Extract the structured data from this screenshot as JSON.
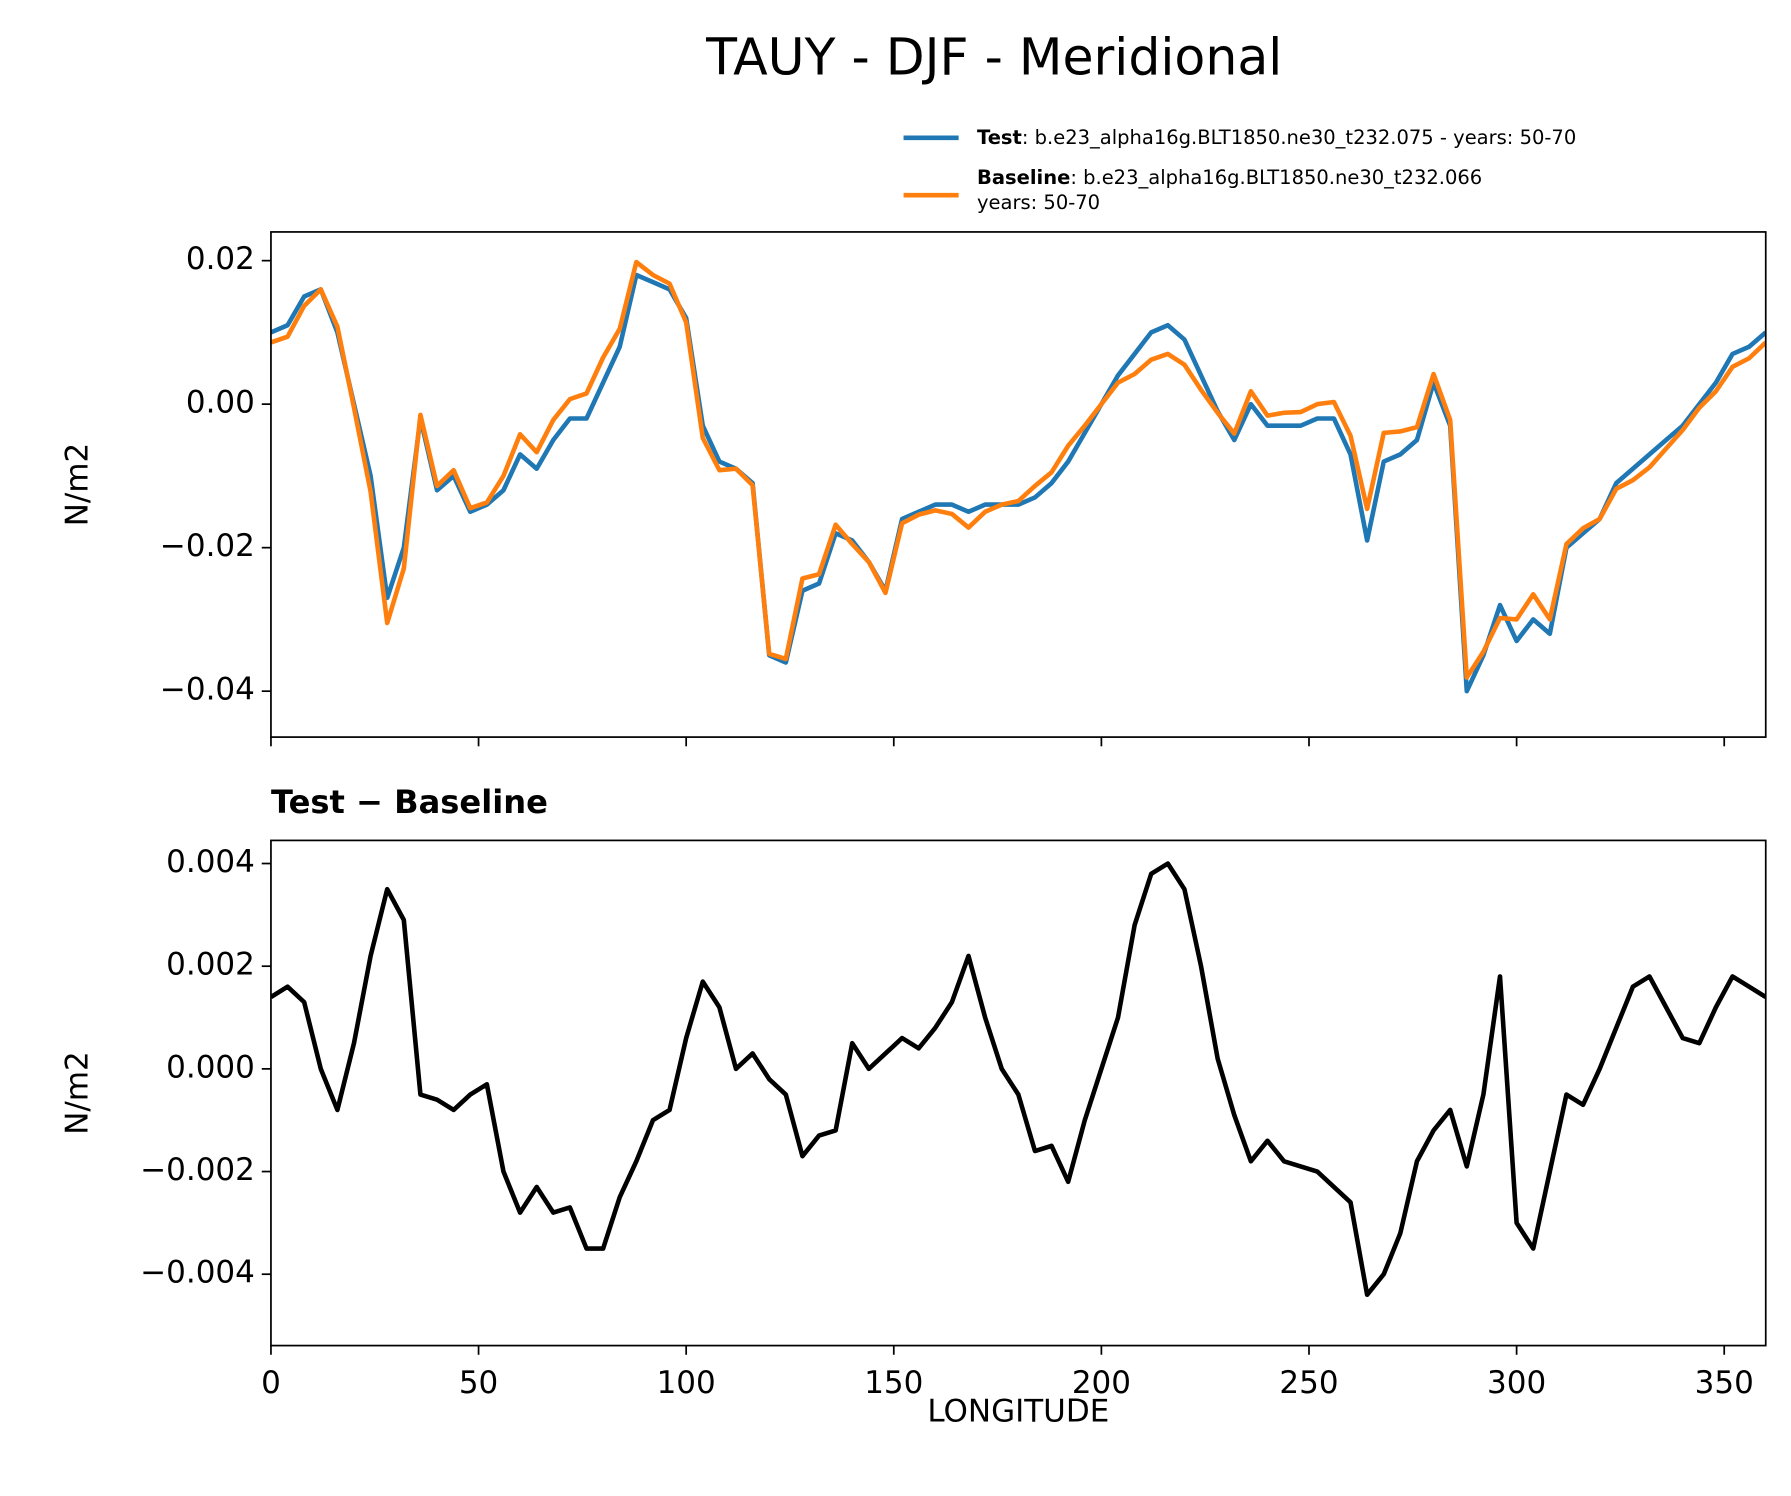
{
  "chart_data": [
    {
      "type": "line",
      "title": "TAUY - DJF - Meridional",
      "ylabel": "N/m2",
      "x": [
        0,
        4,
        8,
        12,
        16,
        20,
        24,
        28,
        32,
        36,
        40,
        44,
        48,
        52,
        56,
        60,
        64,
        68,
        72,
        76,
        80,
        84,
        88,
        92,
        96,
        100,
        104,
        108,
        112,
        116,
        120,
        124,
        128,
        132,
        136,
        140,
        144,
        148,
        152,
        156,
        160,
        164,
        168,
        172,
        176,
        180,
        184,
        188,
        192,
        196,
        200,
        204,
        208,
        212,
        216,
        220,
        224,
        228,
        232,
        236,
        240,
        244,
        248,
        252,
        256,
        260,
        264,
        268,
        272,
        276,
        280,
        284,
        288,
        292,
        296,
        300,
        304,
        308,
        312,
        316,
        320,
        324,
        328,
        332,
        336,
        340,
        344,
        348,
        352,
        356,
        360
      ],
      "series": [
        {
          "name": "Test",
          "description": [
            ": b.e23_alpha16g.BLT1850.ne30_t232.075 - years: 50-70"
          ],
          "color": "#1f77b4",
          "values": [
            0.01,
            0.011,
            0.015,
            0.016,
            0.01,
            0.0,
            -0.01,
            -0.027,
            -0.02,
            -0.002,
            -0.012,
            -0.01,
            -0.015,
            -0.014,
            -0.012,
            -0.007,
            -0.009,
            -0.005,
            -0.002,
            -0.002,
            0.003,
            0.008,
            0.018,
            0.017,
            0.016,
            0.012,
            -0.003,
            -0.008,
            -0.009,
            -0.011,
            -0.035,
            -0.036,
            -0.026,
            -0.025,
            -0.018,
            -0.019,
            -0.022,
            -0.026,
            -0.016,
            -0.015,
            -0.014,
            -0.014,
            -0.015,
            -0.014,
            -0.014,
            -0.014,
            -0.013,
            -0.011,
            -0.008,
            -0.004,
            0.0,
            0.004,
            0.007,
            0.01,
            0.011,
            0.009,
            0.004,
            -0.001,
            -0.005,
            0.0,
            -0.003,
            -0.003,
            -0.003,
            -0.002,
            -0.002,
            -0.007,
            -0.019,
            -0.008,
            -0.007,
            -0.005,
            0.003,
            -0.003,
            -0.04,
            -0.035,
            -0.028,
            -0.033,
            -0.03,
            -0.032,
            -0.02,
            -0.018,
            -0.016,
            -0.011,
            -0.009,
            -0.007,
            -0.005,
            -0.003,
            0.0,
            0.003,
            0.007,
            0.008,
            0.01
          ]
        },
        {
          "name": "Baseline",
          "description": [
            ": b.e23_alpha16g.BLT1850.ne30_t232.066",
            "years: 50-70"
          ],
          "color": "#ff7f0e",
          "values": [
            0.0086,
            0.0094,
            0.0137,
            0.016,
            0.0108,
            -0.0005,
            -0.0122,
            -0.0305,
            -0.0229,
            -0.0015,
            -0.0114,
            -0.0092,
            -0.0145,
            -0.0137,
            -0.01,
            -0.0042,
            -0.0067,
            -0.0022,
            0.0007,
            0.0015,
            0.0065,
            0.0105,
            0.0198,
            0.018,
            0.0168,
            0.0114,
            -0.0047,
            -0.0092,
            -0.009,
            -0.0113,
            -0.0348,
            -0.0355,
            -0.0243,
            -0.0237,
            -0.0168,
            -0.0195,
            -0.022,
            -0.0263,
            -0.0166,
            -0.0154,
            -0.0148,
            -0.0153,
            -0.0172,
            -0.015,
            -0.014,
            -0.0135,
            -0.0114,
            -0.0095,
            -0.0058,
            -0.003,
            0.0,
            0.003,
            0.0042,
            0.0062,
            0.007,
            0.0055,
            0.002,
            -0.0012,
            -0.0041,
            0.0018,
            -0.0016,
            -0.0012,
            -0.0011,
            0.0,
            0.0003,
            -0.0044,
            -0.0146,
            -0.004,
            -0.0038,
            -0.0032,
            0.0042,
            -0.0022,
            -0.0381,
            -0.0345,
            -0.0298,
            -0.03,
            -0.0265,
            -0.03,
            -0.0195,
            -0.0173,
            -0.016,
            -0.0118,
            -0.0106,
            -0.0088,
            -0.0062,
            -0.0036,
            -0.0005,
            0.0018,
            0.0052,
            0.0064,
            0.0086
          ]
        }
      ],
      "xlim": [
        0,
        360
      ],
      "xticks": [
        0,
        50,
        100,
        150,
        200,
        250,
        300,
        350
      ],
      "xtick_labels": false,
      "ylim": [
        -0.0464,
        0.024
      ],
      "yticks": [
        {
          "value": 0.02,
          "label": "0.02"
        },
        {
          "value": 0,
          "label": "0.00"
        },
        {
          "value": -0.02,
          "label": "−0.02"
        },
        {
          "value": -0.04,
          "label": "−0.04"
        }
      ]
    },
    {
      "type": "line",
      "title": "Test − Baseline",
      "ylabel": "N/m2",
      "xlabel": "LONGITUDE",
      "x": [
        0,
        4,
        8,
        12,
        16,
        20,
        24,
        28,
        32,
        36,
        40,
        44,
        48,
        52,
        56,
        60,
        64,
        68,
        72,
        76,
        80,
        84,
        88,
        92,
        96,
        100,
        104,
        108,
        112,
        116,
        120,
        124,
        128,
        132,
        136,
        140,
        144,
        148,
        152,
        156,
        160,
        164,
        168,
        172,
        176,
        180,
        184,
        188,
        192,
        196,
        200,
        204,
        208,
        212,
        216,
        220,
        224,
        228,
        232,
        236,
        240,
        244,
        248,
        252,
        256,
        260,
        264,
        268,
        272,
        276,
        280,
        284,
        288,
        292,
        296,
        300,
        304,
        308,
        312,
        316,
        320,
        324,
        328,
        332,
        336,
        340,
        344,
        348,
        352,
        356,
        360
      ],
      "series": [
        {
          "color": "#000000",
          "values": [
            0.0014,
            0.0016,
            0.0013,
            0.0,
            -0.0008,
            0.0005,
            0.0022,
            0.0035,
            0.0029,
            -0.0005,
            -0.0006,
            -0.0008,
            -0.0005,
            -0.0003,
            -0.002,
            -0.0028,
            -0.0023,
            -0.0028,
            -0.0027,
            -0.0035,
            -0.0035,
            -0.0025,
            -0.0018,
            -0.001,
            -0.0008,
            0.0006,
            0.0017,
            0.0012,
            0.0,
            0.0003,
            -0.0002,
            -0.0005,
            -0.0017,
            -0.0013,
            -0.0012,
            0.0005,
            0.0,
            0.0003,
            0.0006,
            0.0004,
            0.0008,
            0.0013,
            0.0022,
            0.001,
            0.0,
            -0.0005,
            -0.0016,
            -0.0015,
            -0.0022,
            -0.001,
            0.0,
            0.001,
            0.0028,
            0.0038,
            0.004,
            0.0035,
            0.002,
            0.0002,
            -0.0009,
            -0.0018,
            -0.0014,
            -0.0018,
            -0.0019,
            -0.002,
            -0.0023,
            -0.0026,
            -0.0044,
            -0.004,
            -0.0032,
            -0.0018,
            -0.0012,
            -0.0008,
            -0.0019,
            -0.0005,
            0.0018,
            -0.003,
            -0.0035,
            -0.002,
            -0.0005,
            -0.0007,
            0.0,
            0.0008,
            0.0016,
            0.0018,
            0.0012,
            0.0006,
            0.0005,
            0.0012,
            0.0018,
            0.0016,
            0.0014
          ]
        }
      ],
      "xlim": [
        0,
        360
      ],
      "xticks": [
        0,
        50,
        100,
        150,
        200,
        250,
        300,
        350
      ],
      "xtick_labels": true,
      "ylim": [
        -0.00539,
        0.00445
      ],
      "yticks": [
        {
          "value": 0.004,
          "label": "0.004"
        },
        {
          "value": 0.002,
          "label": "0.002"
        },
        {
          "value": 0,
          "label": "0.000"
        },
        {
          "value": -0.002,
          "label": "−0.002"
        },
        {
          "value": -0.004,
          "label": "−0.004"
        }
      ]
    }
  ]
}
